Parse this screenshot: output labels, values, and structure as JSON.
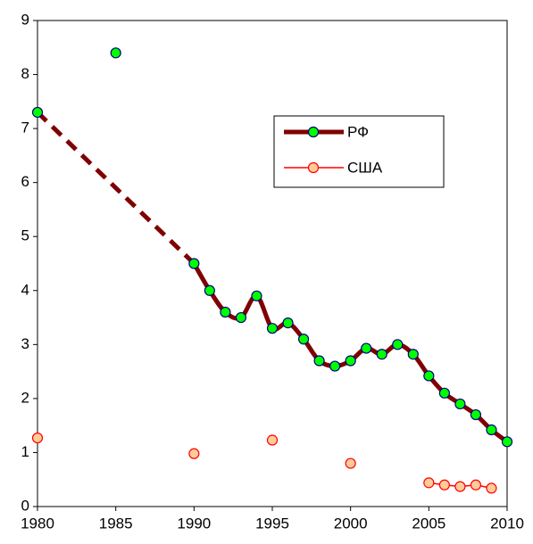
{
  "chart_data": {
    "type": "line",
    "xlim": [
      1980,
      2010
    ],
    "xticks": [
      1980,
      1985,
      1990,
      1995,
      2000,
      2005,
      2010
    ],
    "ylim": [
      0,
      9
    ],
    "yticks": [
      0,
      1,
      2,
      3,
      4,
      5,
      6,
      7,
      8,
      9
    ],
    "grid": false,
    "legend": "upper right",
    "series": [
      {
        "name": "РФ",
        "color": "#7f0000",
        "marker_color": "#00ff00",
        "marker_edge": "#000080",
        "smooth": true,
        "dashed_before": 1990,
        "unconnected_x": [
          1985
        ],
        "x": [
          1980,
          1985,
          1990,
          1991,
          1992,
          1993,
          1994,
          1995,
          1996,
          1997,
          1998,
          1999,
          2000,
          2001,
          2002,
          2003,
          2004,
          2005,
          2006,
          2007,
          2008,
          2009,
          2010
        ],
        "values": [
          7.3,
          8.4,
          4.5,
          4.0,
          3.6,
          3.5,
          3.9,
          3.3,
          3.4,
          3.1,
          2.7,
          2.6,
          2.7,
          2.93,
          2.82,
          3.0,
          2.82,
          2.42,
          2.1,
          1.9,
          1.7,
          1.42,
          1.2
        ]
      },
      {
        "name": "США",
        "color": "#ff0000",
        "marker_color": "#ffcc99",
        "marker_edge": "#ff0000",
        "smooth": false,
        "connect_max_gap": 1,
        "x": [
          1980,
          1990,
          1995,
          2000,
          2005,
          2006,
          2007,
          2008,
          2009
        ],
        "values": [
          1.27,
          0.98,
          1.23,
          0.8,
          0.44,
          0.4,
          0.37,
          0.4,
          0.34
        ]
      }
    ]
  }
}
